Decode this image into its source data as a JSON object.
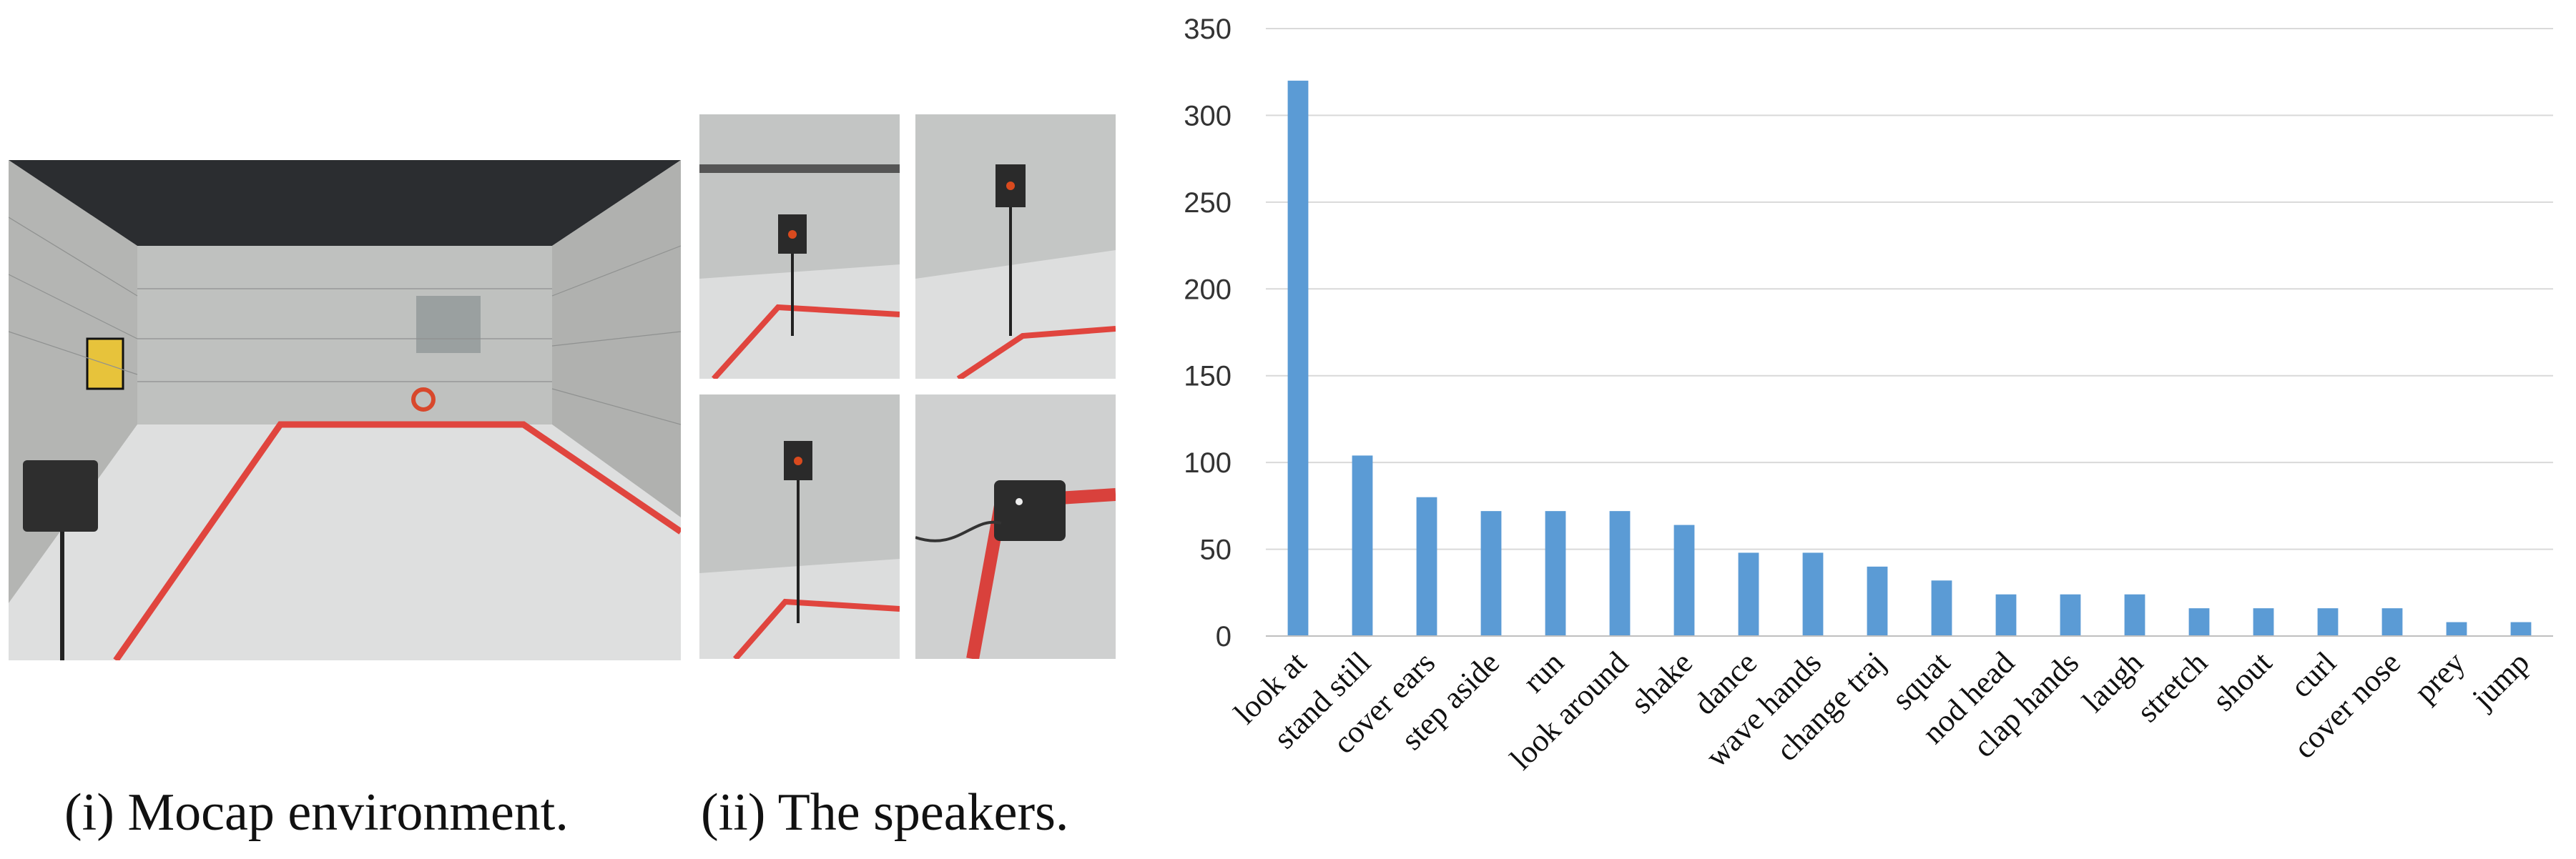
{
  "figure": {
    "panels": [
      {
        "caption": "(i) Mocap environment."
      },
      {
        "caption": "(ii) The speakers."
      }
    ]
  },
  "chart_data": {
    "type": "bar",
    "title": "",
    "xlabel": "",
    "ylabel": "",
    "categories": [
      "look at",
      "stand still",
      "cover ears",
      "step aside",
      "run",
      "look around",
      "shake",
      "dance",
      "wave hands",
      "change traj",
      "squat",
      "nod head",
      "clap hands",
      "laugh",
      "stretch",
      "shout",
      "curl",
      "cover nose",
      "prey",
      "jump"
    ],
    "values": [
      320,
      104,
      80,
      72,
      72,
      72,
      64,
      48,
      48,
      40,
      32,
      24,
      24,
      24,
      16,
      16,
      16,
      16,
      8,
      8
    ],
    "ylim": [
      0,
      350
    ],
    "yticks": [
      0,
      50,
      100,
      150,
      200,
      250,
      300,
      350
    ],
    "grid": true,
    "legend": "none",
    "bar_color": "#5b9bd5",
    "grid_color": "#d9d9d9"
  }
}
